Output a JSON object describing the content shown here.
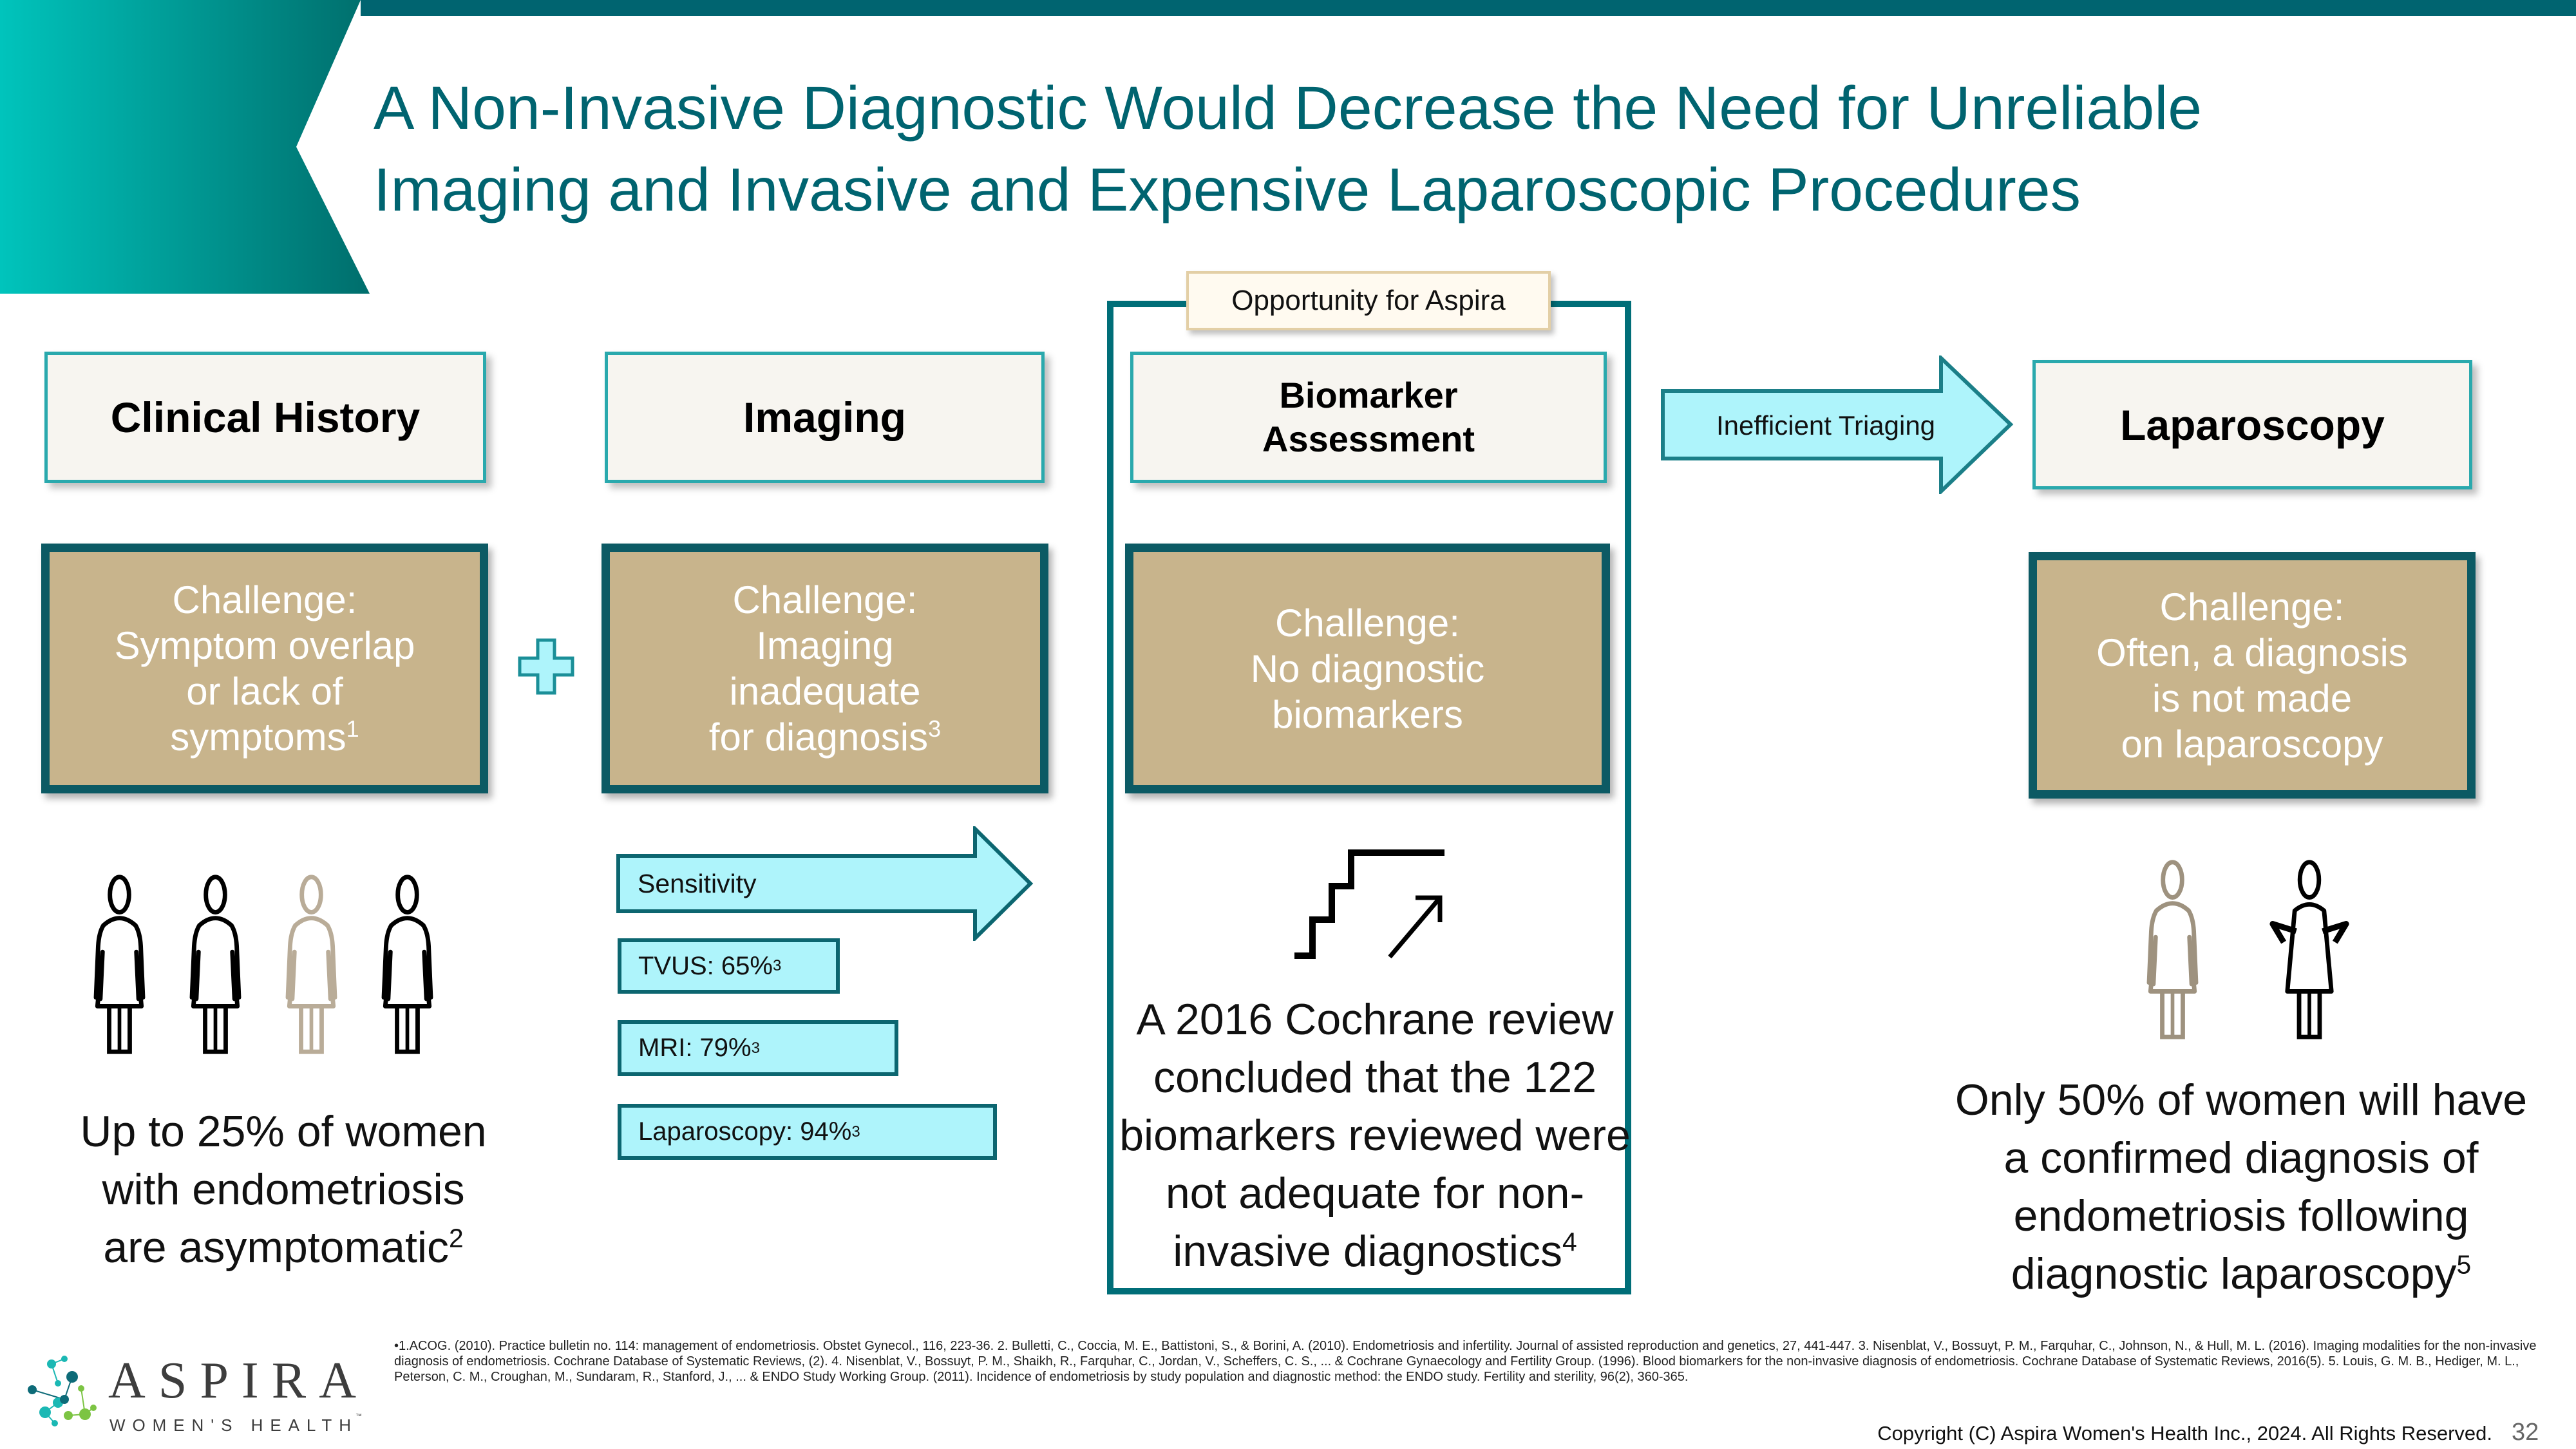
{
  "colors": {
    "brand_teal": "#006470",
    "gradient_start": "#00c4bc",
    "challenge_fill": "#c8b48c",
    "challenge_border": "#0c5a64",
    "arrow_fill": "#aef4fb"
  },
  "title": {
    "line1": "A Non-Invasive Diagnostic Would Decrease the Need for Unreliable",
    "line2": "Imaging and Invasive and Expensive Laparoscopic Procedures"
  },
  "opportunity_label": "Opportunity for Aspira",
  "columns": [
    {
      "header": "Clinical History",
      "challenge": "Challenge:\nSymptom overlap\nor lack of\nsymptoms",
      "challenge_sup": "1",
      "body": "Up to 25% of women\nwith endometriosis\nare asymptomatic",
      "body_sup": "2",
      "icon": "four-women-icon"
    },
    {
      "header": "Imaging",
      "challenge": "Challenge:\nImaging\ninadequate\nfor diagnosis",
      "challenge_sup": "3",
      "sensitivity_label": "Sensitivity",
      "sensitivity": [
        {
          "label": "TVUS: 65%",
          "sup": "3",
          "value": 65
        },
        {
          "label": "MRI: 79%",
          "sup": "3",
          "value": 79
        },
        {
          "label": "Laparoscopy: 94%",
          "sup": "3",
          "value": 94
        }
      ]
    },
    {
      "header": "Biomarker\nAssessment",
      "challenge": "Challenge:\nNo diagnostic\nbiomarkers",
      "body": "A 2016 Cochrane review\nconcluded that the 122\nbiomarkers reviewed were\nnot adequate for non-\ninvasive diagnostics",
      "body_sup": "4",
      "icon": "stairs-up-icon"
    },
    {
      "header": "Laparoscopy",
      "challenge": "Challenge:\nOften, a diagnosis\nis not made\non laparoscopy",
      "body": "Only 50% of women will have\na confirmed diagnosis of\nendometriosis following\ndiagnostic laparoscopy",
      "body_sup": "5",
      "icon": "two-women-icon"
    }
  ],
  "plus_icon": "plus-icon",
  "triage_arrow": "Inefficient Triaging",
  "footnotes": "•1.ACOG. (2010). Practice bulletin no. 114: management of endometriosis. Obstet Gynecol., 116, 223-36. 2. Bulletti, C., Coccia, M. E., Battistoni, S., & Borini, A. (2010). Endometriosis and infertility. Journal of assisted reproduction and genetics, 27, 441-447. 3. Nisenblat, V., Bossuyt, P. M., Farquhar, C., Johnson, N., & Hull, M. L. (2016). Imaging modalities for the non-invasive diagnosis of endometriosis. Cochrane Database of Systematic Reviews, (2). 4. Nisenblat, V., Bossuyt, P. M., Shaikh, R., Farquhar, C., Jordan, V., Scheffers, C. S., ... & Cochrane Gynaecology and Fertility Group. (1996). Blood biomarkers for the non-invasive diagnosis of endometriosis. Cochrane Database of Systematic Reviews, 2016(5). 5. Louis, G. M. B., Hediger, M. L., Peterson, C. M., Croughan, M., Sundaram, R., Stanford, J., ... & ENDO Study Working Group. (2011). Incidence of endometriosis by study population and diagnostic method: the ENDO study. Fertility and sterility, 96(2), 360-365.",
  "logo": {
    "name": "ASPIRA",
    "tagline": "WOMEN'S HEALTH",
    "tm": "™"
  },
  "copyright": "Copyright (C) Aspira Women's Health Inc., 2024. All Rights Reserved.",
  "page_number": "32"
}
